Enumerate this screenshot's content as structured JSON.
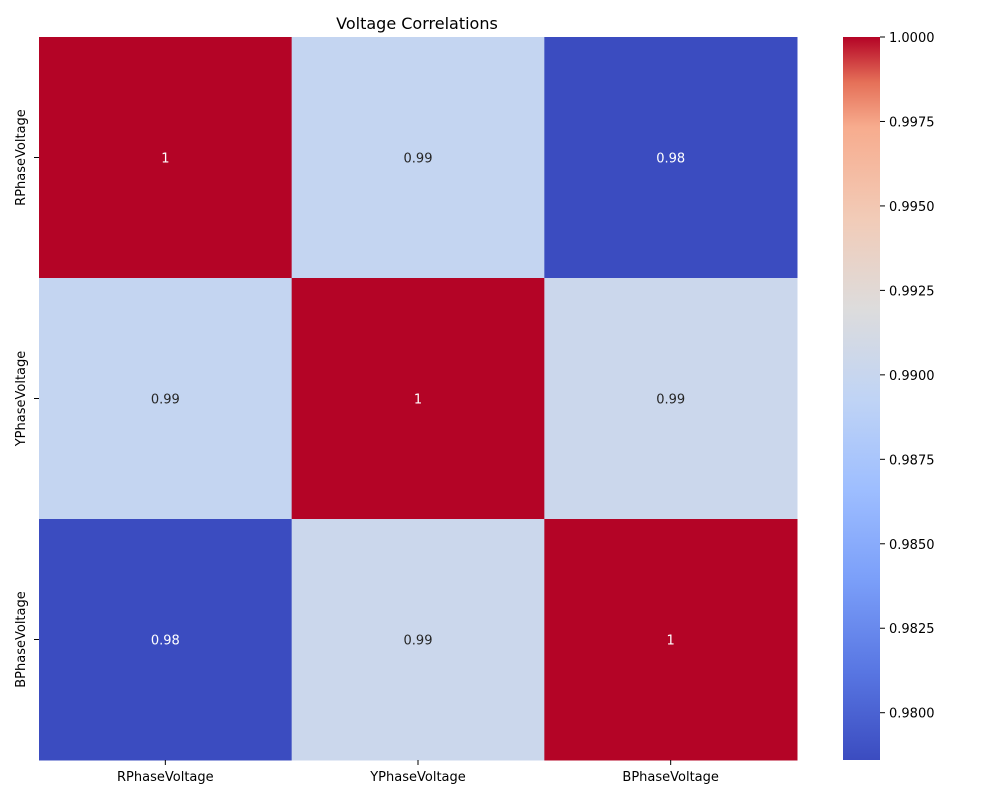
{
  "chart_data": {
    "type": "heatmap",
    "title": "Voltage Correlations",
    "x_labels": [
      "RPhaseVoltage",
      "YPhaseVoltage",
      "BPhaseVoltage"
    ],
    "y_labels": [
      "RPhaseVoltage",
      "YPhaseVoltage",
      "BPhaseVoltage"
    ],
    "values": [
      [
        1.0,
        0.9897,
        0.9786
      ],
      [
        0.9897,
        1.0,
        0.9903
      ],
      [
        0.9786,
        0.9903,
        1.0
      ]
    ],
    "annotations": [
      [
        "1",
        "0.99",
        "0.98"
      ],
      [
        "0.99",
        "1",
        "0.99"
      ],
      [
        "0.98",
        "0.99",
        "1"
      ]
    ],
    "colormap": "coolwarm",
    "vmin": 0.9786,
    "vmax": 1.0,
    "colorbar_ticks": [
      "0.9800",
      "0.9825",
      "0.9850",
      "0.9875",
      "0.9900",
      "0.9925",
      "0.9950",
      "0.9975",
      "1.0000"
    ],
    "colorbar_tick_values": [
      0.98,
      0.9825,
      0.985,
      0.9875,
      0.99,
      0.9925,
      0.995,
      0.9975,
      1.0
    ]
  }
}
